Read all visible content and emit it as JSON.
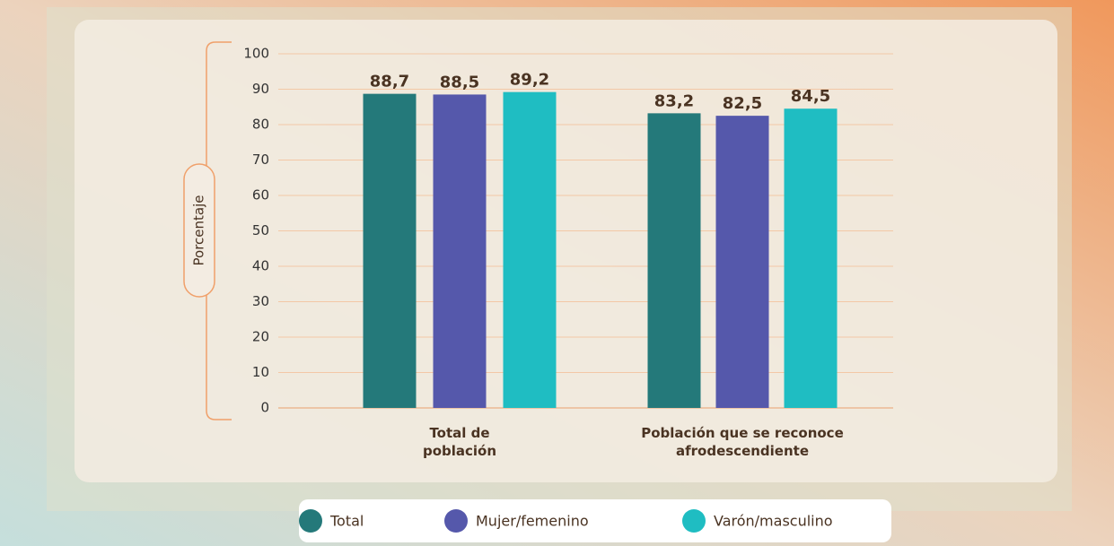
{
  "chart_data": {
    "type": "bar",
    "categories": [
      "Total de población",
      "Población que se reconoce afrodescendiente"
    ],
    "series": [
      {
        "name": "Total",
        "color": "#24797a",
        "values": [
          88.7,
          83.2
        ],
        "value_labels": [
          "88,7",
          "83,2"
        ]
      },
      {
        "name": "Mujer/femenino",
        "color": "#5558ab",
        "values": [
          88.5,
          82.5
        ],
        "value_labels": [
          "88,5",
          "82,5"
        ]
      },
      {
        "name": "Varón/masculino",
        "color": "#1fbdc2",
        "values": [
          89.2,
          84.5
        ],
        "value_labels": [
          "89,2",
          "84,5"
        ]
      }
    ],
    "y_label": "Porcentaje",
    "ylim": [
      0,
      100
    ],
    "yticks": [
      0,
      10,
      20,
      30,
      40,
      50,
      60,
      70,
      80,
      90,
      100
    ],
    "grid": true,
    "legend": "bottom"
  }
}
